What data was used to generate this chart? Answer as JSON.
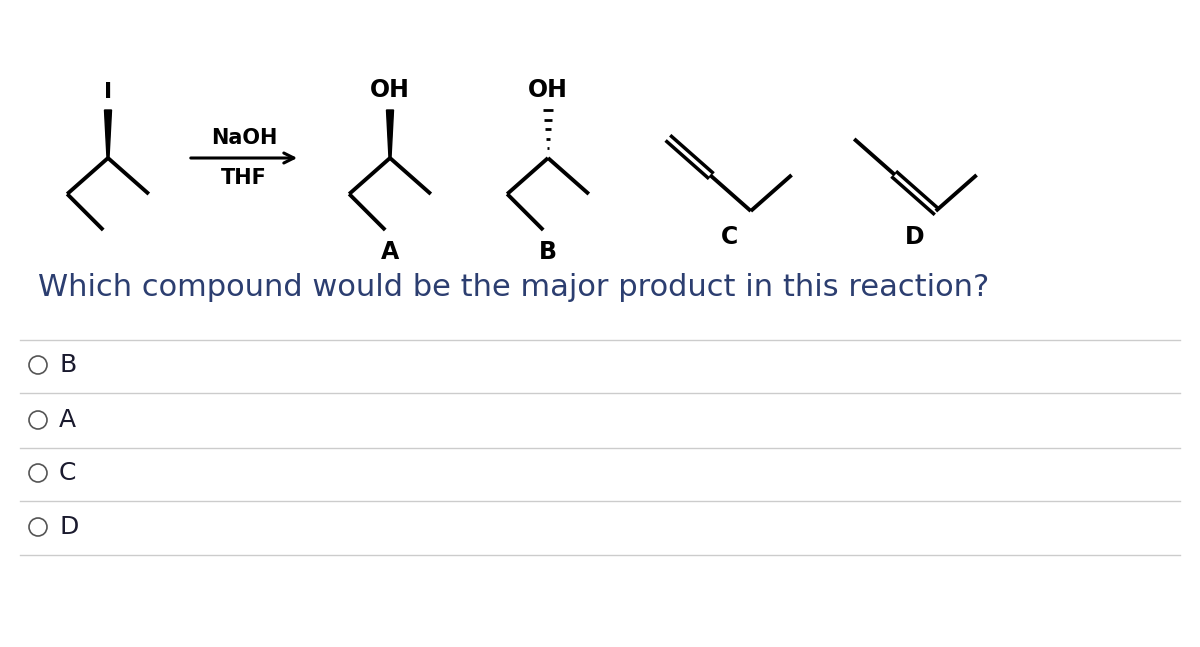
{
  "background_color": "#ffffff",
  "question_text": "Which compound would be the major product in this reaction?",
  "question_fontsize": 22,
  "choices": [
    "B",
    "A",
    "C",
    "D"
  ],
  "reagent_line1": "NaOH",
  "reagent_line2": "THF",
  "figsize": [
    12.0,
    6.47
  ],
  "dpi": 100,
  "text_color": "#1a1a2e",
  "line_color": "#000000",
  "separator_color": "#cccccc",
  "choice_fontsize": 18,
  "label_fontsize": 17,
  "reagent_fontsize": 15,
  "oh_fontsize": 17,
  "question_color": "#2c3e70"
}
